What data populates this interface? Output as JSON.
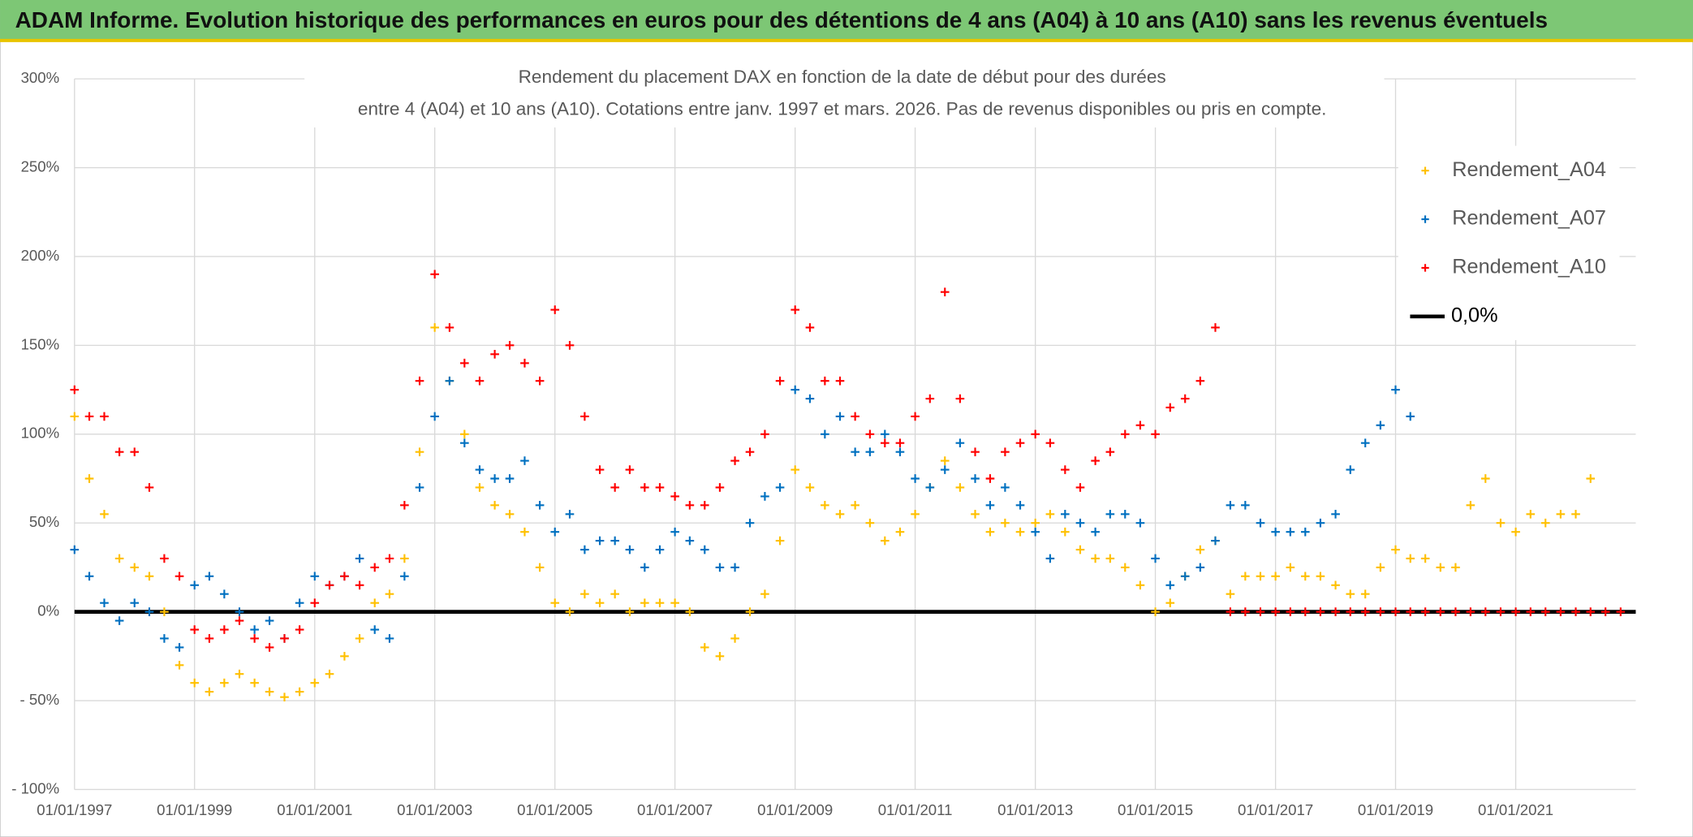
{
  "chart_data": {
    "type": "scatter",
    "title": "ADAM Informe. Evolution historique des performances en euros pour des détentions de 4 ans (A04) à 10 ans (A10) sans les revenus éventuels",
    "subtitle": [
      "Rendement du placement DAX en fonction de la date de début pour des durées",
      "entre 4 (A04) et 10 ans (A10). Cotations entre janv. 1997 et mars. 2026. Pas de revenus disponibles ou pris en compte."
    ],
    "x": [
      "1997-01-01",
      "1997-04-01",
      "1997-07-01",
      "1997-10-01",
      "1998-01-01",
      "1998-04-01",
      "1998-07-01",
      "1998-10-01",
      "1999-01-01",
      "1999-04-01",
      "1999-07-01",
      "1999-10-01",
      "2000-01-01",
      "2000-04-01",
      "2000-07-01",
      "2000-10-01",
      "2001-01-01",
      "2001-04-01",
      "2001-07-01",
      "2001-10-01",
      "2002-01-01",
      "2002-04-01",
      "2002-07-01",
      "2002-10-01",
      "2003-01-01",
      "2003-04-01",
      "2003-07-01",
      "2003-10-01",
      "2004-01-01",
      "2004-04-01",
      "2004-07-01",
      "2004-10-01",
      "2005-01-01",
      "2005-04-01",
      "2005-07-01",
      "2005-10-01",
      "2006-01-01",
      "2006-04-01",
      "2006-07-01",
      "2006-10-01",
      "2007-01-01",
      "2007-04-01",
      "2007-07-01",
      "2007-10-01",
      "2008-01-01",
      "2008-04-01",
      "2008-07-01",
      "2008-10-01",
      "2009-01-01",
      "2009-04-01",
      "2009-07-01",
      "2009-10-01",
      "2010-01-01",
      "2010-04-01",
      "2010-07-01",
      "2010-10-01",
      "2011-01-01",
      "2011-04-01",
      "2011-07-01",
      "2011-10-01",
      "2012-01-01",
      "2012-04-01",
      "2012-07-01",
      "2012-10-01",
      "2013-01-01",
      "2013-04-01",
      "2013-07-01",
      "2013-10-01",
      "2014-01-01",
      "2014-04-01",
      "2014-07-01",
      "2014-10-01",
      "2015-01-01",
      "2015-04-01",
      "2015-07-01",
      "2015-10-01",
      "2016-01-01",
      "2016-04-01",
      "2016-07-01",
      "2016-10-01",
      "2017-01-01",
      "2017-04-01",
      "2017-07-01",
      "2017-10-01",
      "2018-01-01",
      "2018-04-01",
      "2018-07-01",
      "2018-10-01",
      "2019-01-01",
      "2019-04-01",
      "2019-07-01",
      "2019-10-01",
      "2020-01-01",
      "2020-04-01",
      "2020-07-01",
      "2020-10-01",
      "2021-01-01",
      "2021-04-01",
      "2021-07-01",
      "2021-10-01",
      "2022-01-01",
      "2022-04-01",
      "2022-07-01",
      "2022-10-01"
    ],
    "series": [
      {
        "name": "Rendement_A04",
        "color": "#ffc000",
        "values": [
          110,
          75,
          55,
          30,
          25,
          20,
          0,
          -30,
          -40,
          -45,
          -40,
          -35,
          -40,
          -45,
          -48,
          -45,
          -40,
          -35,
          -25,
          -15,
          5,
          10,
          30,
          90,
          160,
          130,
          100,
          70,
          60,
          55,
          45,
          25,
          5,
          0,
          10,
          5,
          10,
          0,
          5,
          5,
          5,
          0,
          -20,
          -25,
          -15,
          0,
          10,
          40,
          80,
          70,
          60,
          55,
          60,
          50,
          40,
          45,
          55,
          70,
          85,
          70,
          55,
          45,
          50,
          45,
          50,
          55,
          45,
          35,
          30,
          30,
          25,
          15,
          0,
          5,
          20,
          35,
          40,
          10,
          20,
          20,
          20,
          25,
          20,
          20,
          15,
          10,
          10,
          25,
          35,
          30,
          30,
          25,
          25,
          60,
          75,
          50,
          45,
          55,
          50,
          55,
          55,
          75,
          null,
          null
        ]
      },
      {
        "name": "Rendement_A07",
        "color": "#0070c0",
        "values": [
          35,
          20,
          5,
          -5,
          5,
          0,
          -15,
          -20,
          15,
          20,
          10,
          0,
          -10,
          -5,
          -15,
          5,
          20,
          15,
          20,
          30,
          -10,
          -15,
          20,
          70,
          110,
          130,
          95,
          80,
          75,
          75,
          85,
          60,
          45,
          55,
          35,
          40,
          40,
          35,
          25,
          35,
          45,
          40,
          35,
          25,
          25,
          50,
          65,
          70,
          125,
          120,
          100,
          110,
          90,
          90,
          100,
          90,
          75,
          70,
          80,
          95,
          75,
          60,
          70,
          60,
          45,
          30,
          55,
          50,
          45,
          55,
          55,
          50,
          30,
          15,
          20,
          25,
          40,
          60,
          60,
          50,
          45,
          45,
          45,
          50,
          55,
          80,
          95,
          105,
          125,
          110,
          null,
          null,
          null,
          null,
          null,
          null,
          null,
          null,
          null,
          null,
          null,
          null,
          null,
          null
        ]
      },
      {
        "name": "Rendement_A10",
        "color": "#ff0000",
        "values": [
          125,
          110,
          110,
          90,
          90,
          70,
          30,
          20,
          -10,
          -15,
          -10,
          -5,
          -15,
          -20,
          -15,
          -10,
          5,
          15,
          20,
          15,
          25,
          30,
          60,
          130,
          190,
          160,
          140,
          130,
          145,
          150,
          140,
          130,
          170,
          150,
          110,
          80,
          70,
          80,
          70,
          70,
          65,
          60,
          60,
          70,
          85,
          90,
          100,
          130,
          170,
          160,
          130,
          130,
          110,
          100,
          95,
          95,
          110,
          120,
          180,
          120,
          90,
          75,
          90,
          95,
          100,
          95,
          80,
          70,
          85,
          90,
          100,
          105,
          100,
          115,
          120,
          130,
          160,
          0,
          0,
          0,
          0,
          0,
          0,
          0,
          0,
          0,
          0,
          0,
          0,
          0,
          0,
          0,
          0,
          0,
          0,
          0,
          0,
          0,
          0,
          0,
          0,
          0,
          0,
          0
        ]
      }
    ],
    "reference_line": {
      "name": "0,0%",
      "value": 0,
      "color": "#000000"
    },
    "xlim": [
      "1997-01-01",
      "2023-01-01"
    ],
    "xticks": [
      {
        "value": "1997-01-01",
        "label": "01/01/1997"
      },
      {
        "value": "1999-01-01",
        "label": "01/01/1999"
      },
      {
        "value": "2001-01-01",
        "label": "01/01/2001"
      },
      {
        "value": "2003-01-01",
        "label": "01/01/2003"
      },
      {
        "value": "2005-01-01",
        "label": "01/01/2005"
      },
      {
        "value": "2007-01-01",
        "label": "01/01/2007"
      },
      {
        "value": "2009-01-01",
        "label": "01/01/2009"
      },
      {
        "value": "2011-01-01",
        "label": "01/01/2011"
      },
      {
        "value": "2013-01-01",
        "label": "01/01/2013"
      },
      {
        "value": "2015-01-01",
        "label": "01/01/2015"
      },
      {
        "value": "2017-01-01",
        "label": "01/01/2017"
      },
      {
        "value": "2019-01-01",
        "label": "01/01/2019"
      },
      {
        "value": "2021-01-01",
        "label": "01/01/2021"
      }
    ],
    "ylim": [
      -100,
      300
    ],
    "yticks": [
      {
        "value": -100,
        "label": "- 100%"
      },
      {
        "value": -50,
        "label": "- 50%"
      },
      {
        "value": 0,
        "label": "0%"
      },
      {
        "value": 50,
        "label": "50%"
      },
      {
        "value": 100,
        "label": "100%"
      },
      {
        "value": 150,
        "label": "150%"
      },
      {
        "value": 200,
        "label": "200%"
      },
      {
        "value": 250,
        "label": "250%"
      },
      {
        "value": 300,
        "label": "300%"
      }
    ],
    "grid": true,
    "legend": "top-right"
  }
}
